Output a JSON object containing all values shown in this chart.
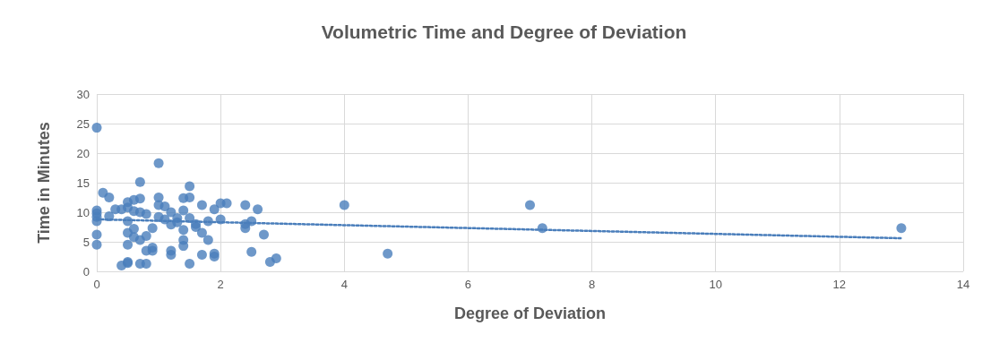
{
  "chart_data": {
    "type": "scatter",
    "title": "Volumetric Time and Degree of Deviation",
    "xlabel": "Degree of Deviation",
    "ylabel": "Time in Minutes",
    "xlim": [
      0,
      14
    ],
    "xticks": [
      0,
      2,
      4,
      6,
      8,
      10,
      12,
      14
    ],
    "ylim": [
      0,
      30
    ],
    "yticks": [
      0,
      5,
      10,
      15,
      20,
      25,
      30
    ],
    "grid": true,
    "marker": "circle",
    "series": [
      {
        "color": "#4a7ebb",
        "x": [
          0,
          0,
          0,
          0,
          0,
          0,
          0,
          0.1,
          0.2,
          0.2,
          0.3,
          0.4,
          0.4,
          0.5,
          0.5,
          0.5,
          0.5,
          0.5,
          0.5,
          0.5,
          0.6,
          0.6,
          0.6,
          0.6,
          0.7,
          0.7,
          0.7,
          0.7,
          0.7,
          0.8,
          0.8,
          0.8,
          0.8,
          0.9,
          0.9,
          0.9,
          1.0,
          1.0,
          1.0,
          1.0,
          1.1,
          1.1,
          1.2,
          1.2,
          1.2,
          1.2,
          1.3,
          1.3,
          1.4,
          1.4,
          1.4,
          1.4,
          1.4,
          1.5,
          1.5,
          1.5,
          1.5,
          1.6,
          1.6,
          1.7,
          1.7,
          1.7,
          1.8,
          1.8,
          1.9,
          1.9,
          1.9,
          2.0,
          2.0,
          2.1,
          2.4,
          2.4,
          2.4,
          2.5,
          2.5,
          2.6,
          2.7,
          2.8,
          2.9,
          4.0,
          4.7,
          7.0,
          7.2,
          13
        ],
        "values": [
          24.3,
          10.3,
          9.8,
          9.2,
          8.5,
          6.2,
          4.5,
          13.3,
          12.5,
          9.3,
          10.5,
          10.5,
          1.0,
          1.4,
          1.6,
          4.5,
          6.5,
          8.5,
          10.8,
          11.7,
          12.1,
          10.2,
          7.2,
          5.8,
          15.1,
          12.3,
          10.0,
          5.3,
          1.3,
          1.3,
          6.0,
          9.7,
          3.5,
          4.0,
          3.5,
          7.3,
          18.3,
          12.5,
          11.2,
          9.2,
          8.8,
          11.0,
          10.0,
          7.9,
          3.5,
          2.8,
          9.0,
          8.3,
          10.3,
          12.4,
          7.0,
          5.3,
          4.3,
          14.4,
          12.5,
          9.0,
          1.3,
          8.0,
          7.5,
          6.5,
          2.8,
          11.2,
          5.3,
          8.5,
          3.0,
          2.5,
          10.5,
          11.5,
          8.8,
          11.5,
          11.2,
          8.0,
          7.3,
          8.5,
          3.3,
          10.5,
          6.2,
          1.6,
          2.2,
          11.2,
          3.0,
          11.2,
          7.3,
          7.3
        ]
      },
      {
        "type": "line",
        "color": "#4a7ebb",
        "line_style": "dotted",
        "marker": "none",
        "x": [
          0,
          13
        ],
        "values": [
          8.8,
          5.6
        ]
      }
    ]
  }
}
